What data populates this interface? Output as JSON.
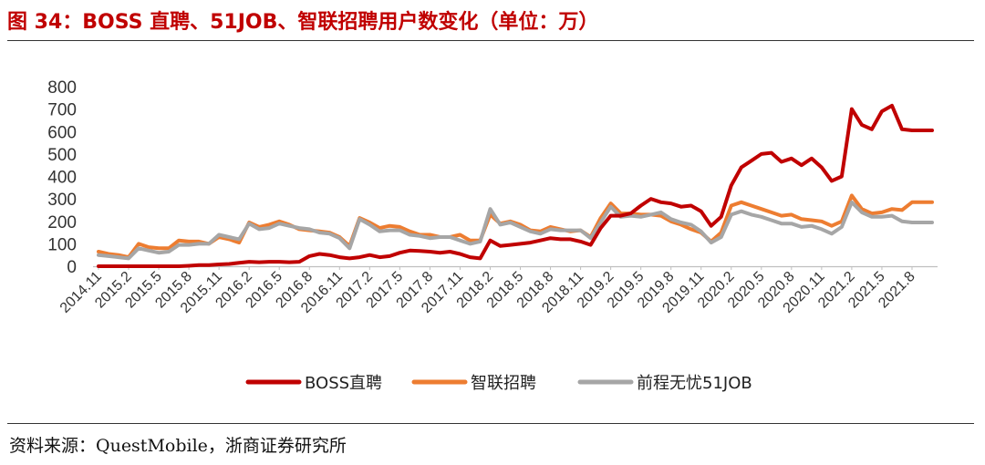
{
  "header": {
    "title": "图 34：BOSS 直聘、51JOB、智联招聘用户数变化（单位：万）"
  },
  "footer": {
    "source": "资料来源：QuestMobile，浙商证券研究所"
  },
  "chart_data": {
    "type": "line",
    "title": "图 34：BOSS 直聘、51JOB、智联招聘用户数变化（单位：万）",
    "xlabel": "",
    "ylabel": "",
    "ylim": [
      0,
      800
    ],
    "yticks": [
      0,
      100,
      200,
      300,
      400,
      500,
      600,
      700,
      800
    ],
    "grid": false,
    "legend": "bottom",
    "x": [
      "2014.11",
      "2014.12",
      "2015.1",
      "2015.2",
      "2015.3",
      "2015.4",
      "2015.5",
      "2015.6",
      "2015.7",
      "2015.8",
      "2015.9",
      "2015.10",
      "2015.11",
      "2015.12",
      "2016.1",
      "2016.2",
      "2016.3",
      "2016.4",
      "2016.5",
      "2016.6",
      "2016.7",
      "2016.8",
      "2016.9",
      "2016.10",
      "2016.11",
      "2016.12",
      "2017.1",
      "2017.2",
      "2017.3",
      "2017.4",
      "2017.5",
      "2017.6",
      "2017.7",
      "2017.8",
      "2017.9",
      "2017.10",
      "2017.11",
      "2017.12",
      "2018.1",
      "2018.2",
      "2018.3",
      "2018.4",
      "2018.5",
      "2018.6",
      "2018.7",
      "2018.8",
      "2018.9",
      "2018.10",
      "2018.11",
      "2018.12",
      "2019.1",
      "2019.2",
      "2019.3",
      "2019.4",
      "2019.5",
      "2019.6",
      "2019.7",
      "2019.8",
      "2019.9",
      "2019.10",
      "2019.11",
      "2019.12",
      "2020.1",
      "2020.2",
      "2020.3",
      "2020.4",
      "2020.5",
      "2020.6",
      "2020.7",
      "2020.8",
      "2020.9",
      "2020.10",
      "2020.11",
      "2020.12",
      "2021.1",
      "2021.2",
      "2021.3",
      "2021.4",
      "2021.5",
      "2021.6",
      "2021.7",
      "2021.8",
      "2021.9",
      "2021.10"
    ],
    "xtick_labels": [
      "2014.11",
      "2015.2",
      "2015.5",
      "2015.8",
      "2015.11",
      "2016.2",
      "2016.5",
      "2016.8",
      "2016.11",
      "2017.2",
      "2017.5",
      "2017.8",
      "2017.11",
      "2018.2",
      "2018.5",
      "2018.8",
      "2018.11",
      "2019.2",
      "2019.5",
      "2019.8",
      "2019.11",
      "2020.2",
      "2020.5",
      "2020.8",
      "2020.11",
      "2021.2",
      "2021.5",
      "2021.8"
    ],
    "series": [
      {
        "name": "BOSS直聘",
        "color": "#c00000",
        "values": [
          0,
          0,
          0,
          0,
          0,
          0,
          0,
          0,
          0,
          2,
          5,
          5,
          8,
          10,
          15,
          20,
          18,
          20,
          20,
          18,
          20,
          45,
          55,
          50,
          40,
          35,
          40,
          50,
          40,
          45,
          60,
          70,
          68,
          65,
          60,
          65,
          55,
          40,
          35,
          115,
          90,
          95,
          100,
          105,
          115,
          125,
          120,
          120,
          110,
          95,
          170,
          225,
          225,
          235,
          270,
          300,
          285,
          280,
          265,
          270,
          245,
          180,
          220,
          360,
          440,
          470,
          500,
          505,
          465,
          480,
          450,
          480,
          440,
          380,
          400,
          700,
          630,
          610,
          690,
          715,
          610,
          605,
          605,
          605
        ],
        "points_shown": 84
      },
      {
        "name": "智联招聘",
        "color": "#ed7d31",
        "values": [
          65,
          55,
          50,
          40,
          100,
          85,
          80,
          80,
          115,
          110,
          110,
          100,
          130,
          120,
          105,
          195,
          175,
          185,
          200,
          185,
          165,
          160,
          155,
          150,
          130,
          90,
          215,
          195,
          170,
          180,
          175,
          155,
          140,
          140,
          130,
          130,
          140,
          115,
          115,
          230,
          190,
          200,
          185,
          160,
          155,
          175,
          165,
          155,
          160,
          130,
          215,
          280,
          235,
          235,
          230,
          230,
          225,
          200,
          185,
          165,
          150,
          110,
          150,
          270,
          285,
          270,
          255,
          240,
          225,
          230,
          210,
          205,
          200,
          180,
          200,
          315,
          255,
          235,
          240,
          255,
          250,
          285,
          285,
          285
        ],
        "points_shown": 84
      },
      {
        "name": "前程无忧51JOB",
        "color": "#a6a6a6",
        "values": [
          50,
          45,
          40,
          35,
          80,
          70,
          60,
          65,
          95,
          95,
          100,
          100,
          140,
          130,
          120,
          190,
          165,
          170,
          190,
          180,
          170,
          165,
          150,
          145,
          125,
          80,
          210,
          185,
          155,
          160,
          160,
          140,
          135,
          125,
          130,
          130,
          115,
          100,
          110,
          255,
          185,
          195,
          175,
          155,
          145,
          165,
          160,
          160,
          160,
          125,
          195,
          265,
          220,
          225,
          220,
          230,
          240,
          210,
          195,
          185,
          155,
          105,
          130,
          230,
          245,
          230,
          220,
          205,
          190,
          190,
          175,
          180,
          165,
          145,
          175,
          285,
          240,
          220,
          220,
          225,
          200,
          195,
          195,
          195
        ],
        "points_shown": 84
      }
    ]
  }
}
